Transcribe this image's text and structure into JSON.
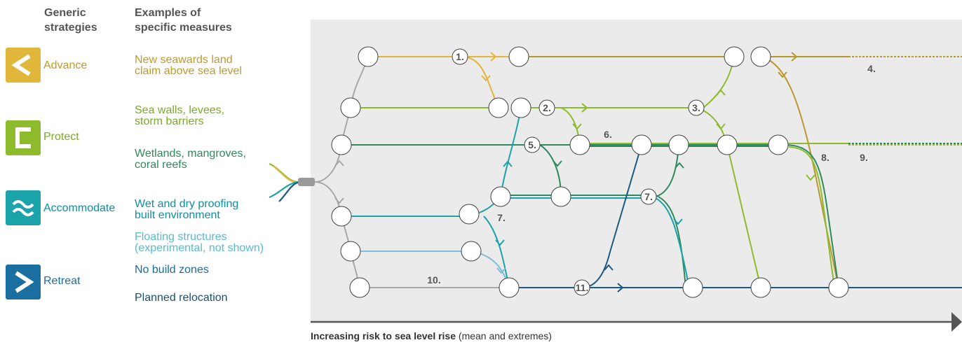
{
  "headers": {
    "strategies": "Generic\nstrategies",
    "measures": "Examples of\nspecific measures"
  },
  "strategies": [
    {
      "label": "Advance",
      "icon": "advance-icon",
      "color": "#e1b73b"
    },
    {
      "label": "Protect",
      "icon": "protect-icon",
      "color": "#8dbb2c"
    },
    {
      "label": "Accommodate",
      "icon": "accommodate-icon",
      "color": "#1aa3a8"
    },
    {
      "label": "Retreat",
      "icon": "retreat-icon",
      "color": "#1a6fa0"
    }
  ],
  "measures": [
    {
      "text": "New seawards land\nclaim above sea level",
      "color": "#c09a2a"
    },
    {
      "text": "Sea walls, levees,\nstorm barriers",
      "color": "#7aab26"
    },
    {
      "text": "Wetlands, mangroves,\ncoral reefs",
      "color": "#2e8a5e"
    },
    {
      "text": "Wet and dry proofing\nbuilt environment",
      "color": "#0d8fa3"
    },
    {
      "text": "Floating structures\n(experimental, not shown)",
      "color": "#58bccd"
    },
    {
      "text": "No build zones",
      "color": "#1b6a9e"
    },
    {
      "text": "Planned relocation",
      "color": "#1c4f70"
    }
  ],
  "numbers": [
    "1.",
    "2.",
    "3.",
    "4.",
    "5.",
    "6.",
    "7.",
    "7.",
    "8.",
    "9.",
    "10.",
    "11."
  ],
  "axis": {
    "bold": "Increasing risk to sea level rise",
    "rest": " (mean and extremes)"
  },
  "colors": {
    "advance": "#e1b73b",
    "advance_dark": "#b8982c",
    "protect": "#8dbb2c",
    "wetland": "#2e8a5e",
    "accommodate": "#1aa3a8",
    "floating": "#7fbfdc",
    "retreat": "#1c5a80",
    "grey_line": "#a8a8a8",
    "panel": "#ebebeb"
  }
}
